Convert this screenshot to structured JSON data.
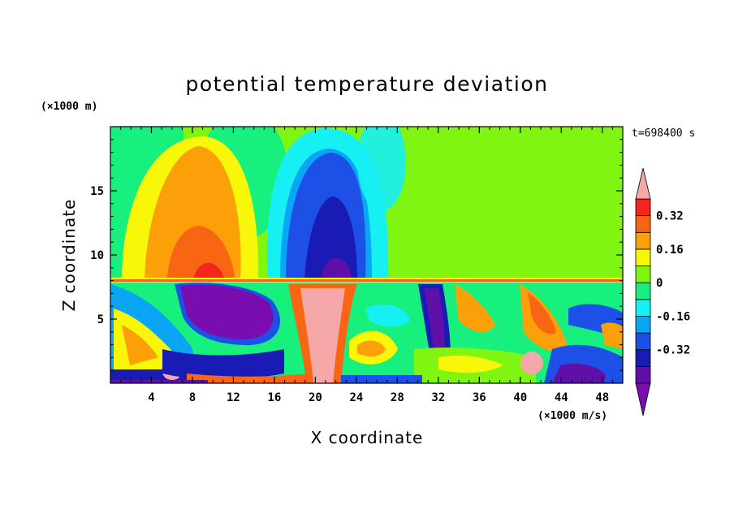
{
  "chart_data": {
    "type": "heatmap",
    "title": "potential temperature deviation",
    "xlabel": "X coordinate",
    "ylabel": "Z coordinate",
    "x_unit": "(×1000 m/s)",
    "y_unit": "(×1000 m)",
    "time_label": "t=698400 s",
    "xlim": [
      0,
      50
    ],
    "ylim": [
      0,
      20
    ],
    "xticks": [
      4,
      8,
      12,
      16,
      20,
      24,
      28,
      32,
      36,
      40,
      44,
      48
    ],
    "yticks": [
      5,
      10,
      15
    ],
    "colorbar": {
      "levels": [
        -0.48,
        -0.4,
        -0.32,
        -0.24,
        -0.16,
        -0.08,
        0,
        0.08,
        0.16,
        0.24,
        0.32,
        0.4
      ],
      "labels": [
        "0.32",
        "0.16",
        "0",
        "-0.16",
        "-0.32"
      ],
      "label_values": [
        0.32,
        0.16,
        0,
        -0.16,
        -0.32
      ],
      "colors": [
        "#7a0db0",
        "#5e10a8",
        "#1a1ab4",
        "#1c50e6",
        "#0ba5f6",
        "#17f0f3",
        "#17f07c",
        "#80f512",
        "#f8f70a",
        "#fba009",
        "#f86513",
        "#f4251c",
        "#f6a8a8"
      ],
      "extend": "both"
    }
  }
}
